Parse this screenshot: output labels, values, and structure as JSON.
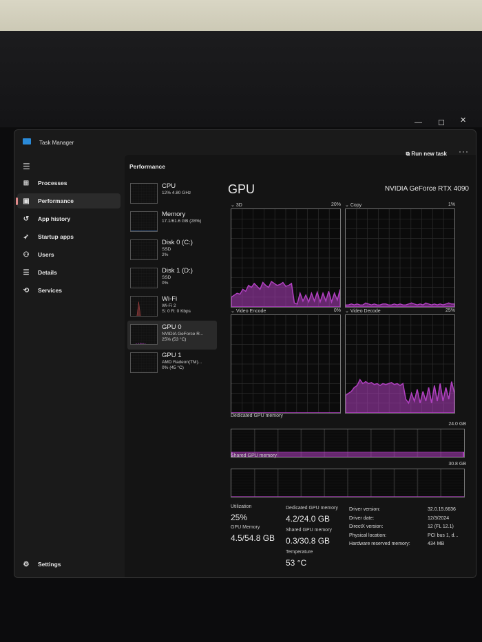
{
  "window": {
    "title": "Task Manager",
    "minimize": "—",
    "maximize": "☐",
    "close": "✕"
  },
  "sidebar": {
    "items": [
      {
        "label": "Processes",
        "icon": "⊞"
      },
      {
        "label": "Performance",
        "icon": "▣",
        "active": true
      },
      {
        "label": "App history",
        "icon": "↺"
      },
      {
        "label": "Startup apps",
        "icon": "➶"
      },
      {
        "label": "Users",
        "icon": "⚇"
      },
      {
        "label": "Details",
        "icon": "☰"
      },
      {
        "label": "Services",
        "icon": "⟲"
      }
    ],
    "settings": {
      "label": "Settings",
      "icon": "⚙"
    }
  },
  "header": {
    "title": "Performance",
    "run_new_task": "Run new task",
    "more": "···"
  },
  "devices": [
    {
      "title": "CPU",
      "lines": [
        "12% 4.80 GHz"
      ],
      "color": "#2fb0c8"
    },
    {
      "title": "Memory",
      "lines": [
        "17.1/61.6 GB (28%)"
      ],
      "color": "#4a7fd0"
    },
    {
      "title": "Disk 0 (C:)",
      "lines": [
        "SSD",
        "2%"
      ],
      "color": "#6bbf59"
    },
    {
      "title": "Disk 1 (D:)",
      "lines": [
        "SSD",
        "0%"
      ],
      "color": "#6bbf59"
    },
    {
      "title": "Wi-Fi",
      "lines": [
        "Wi-Fi 2",
        "S: 0 R: 0 Kbps"
      ],
      "color": "#d05050"
    },
    {
      "title": "GPU 0",
      "lines": [
        "NVIDIA GeForce R...",
        "25% (53 °C)"
      ],
      "color": "#b040c0",
      "selected": true
    },
    {
      "title": "GPU 1",
      "lines": [
        "AMD Radeon(TM)...",
        "0% (45 °C)"
      ],
      "color": "#b040c0"
    }
  ],
  "gpu": {
    "heading": "GPU",
    "name": "NVIDIA GeForce RTX 4090",
    "accent": "#b040c0",
    "engines": [
      {
        "label": "3D",
        "max": "20%",
        "samples": [
          10,
          12,
          14,
          13,
          18,
          16,
          22,
          20,
          24,
          21,
          18,
          25,
          22,
          20,
          26,
          24,
          22,
          23,
          25,
          21,
          22,
          24,
          4,
          3,
          14,
          6,
          12,
          5,
          14,
          6,
          15,
          5,
          14,
          6,
          16,
          5,
          14,
          7,
          18
        ]
      },
      {
        "label": "Copy",
        "max": "1%",
        "samples": [
          2,
          2,
          3,
          2,
          3,
          2,
          2,
          4,
          3,
          2,
          3,
          2,
          2,
          3,
          3,
          2,
          2,
          3,
          2,
          3,
          2,
          2,
          3,
          4,
          3,
          2,
          3,
          2,
          4,
          3,
          2,
          3,
          2,
          3,
          2,
          3,
          4,
          3,
          3
        ]
      },
      {
        "label": "Video Encode",
        "max": "0%",
        "samples": [
          0,
          0,
          0,
          0,
          0,
          0,
          0,
          0,
          0,
          0,
          0,
          0,
          0,
          0,
          0,
          0,
          0,
          0,
          0,
          0,
          0,
          0,
          0,
          0,
          0,
          0,
          0,
          0,
          0,
          0,
          0,
          0,
          0,
          0,
          0,
          0,
          0,
          0,
          0
        ]
      },
      {
        "label": "Video Decode",
        "max": "25%",
        "samples": [
          18,
          20,
          22,
          26,
          28,
          34,
          30,
          32,
          30,
          31,
          29,
          30,
          28,
          30,
          29,
          30,
          31,
          29,
          30,
          28,
          30,
          14,
          10,
          20,
          12,
          24,
          10,
          22,
          12,
          26,
          10,
          28,
          12,
          30,
          12,
          26,
          14,
          32,
          20
        ]
      }
    ],
    "dedicated_graph": {
      "label": "Dedicated GPU memory",
      "max": "24.0 GB",
      "fraction": 0.175
    },
    "shared_graph": {
      "label": "Shared GPU memory",
      "max": "30.8 GB",
      "fraction": 0.01
    },
    "stats": {
      "utilization_label": "Utilization",
      "utilization": "25%",
      "gpu_memory_label": "GPU Memory",
      "gpu_memory": "4.5/54.8 GB",
      "dedicated_label": "Dedicated GPU memory",
      "dedicated": "4.2/24.0 GB",
      "shared_label": "Shared GPU memory",
      "shared": "0.3/30.8 GB",
      "temperature_label": "Temperature",
      "temperature": "53 °C"
    },
    "info": [
      {
        "key": "Driver version:",
        "value": "32.0.15.6636"
      },
      {
        "key": "Driver date:",
        "value": "12/3/2024"
      },
      {
        "key": "DirectX version:",
        "value": "12 (FL 12.1)"
      },
      {
        "key": "Physical location:",
        "value": "PCI bus 1, d..."
      },
      {
        "key": "Hardware reserved memory:",
        "value": "434 MB"
      }
    ]
  }
}
